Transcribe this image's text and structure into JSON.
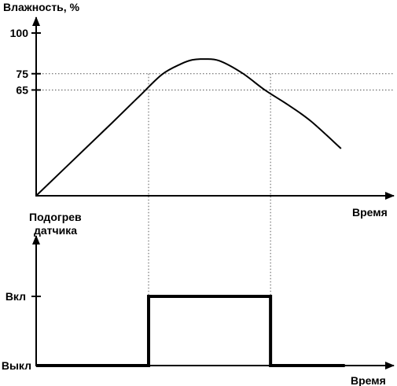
{
  "chart_data": [
    {
      "type": "line",
      "ylabel": "Влажность, %",
      "xlabel": "Время",
      "yticks": [
        "100",
        "75",
        "65"
      ],
      "ytick_values": [
        100,
        75,
        65
      ],
      "ylim": [
        0,
        100
      ],
      "x": [
        0,
        10,
        20,
        27,
        33,
        38,
        41,
        44,
        48,
        54,
        60,
        66,
        72,
        80
      ],
      "y": [
        0,
        22.5,
        45,
        61,
        74.5,
        81,
        83.5,
        84,
        83,
        75.5,
        65,
        56,
        46,
        29
      ],
      "xlim": [
        0,
        92
      ],
      "reference_lines_y": [
        75,
        65
      ],
      "reference_lines_x": [
        29.5,
        61.5
      ],
      "grid": false
    },
    {
      "type": "line",
      "ylabel": "Подогрев датчика",
      "ylabel_lines": [
        "Подогрев",
        "датчика"
      ],
      "xlabel": "Время",
      "yticks": [
        "Вкл",
        "Выкл"
      ],
      "ytick_values": [
        1,
        0
      ],
      "ylim": [
        0,
        1.4
      ],
      "xlim": [
        0,
        92
      ],
      "steps": [
        {
          "x": 0,
          "y": 0
        },
        {
          "x": 29.5,
          "y": 0
        },
        {
          "x": 29.5,
          "y": 1
        },
        {
          "x": 61.5,
          "y": 1
        },
        {
          "x": 61.5,
          "y": 0
        },
        {
          "x": 81,
          "y": 0
        }
      ],
      "grid": false
    }
  ],
  "colors": {
    "ink": "#000000",
    "guide": "#555555"
  }
}
